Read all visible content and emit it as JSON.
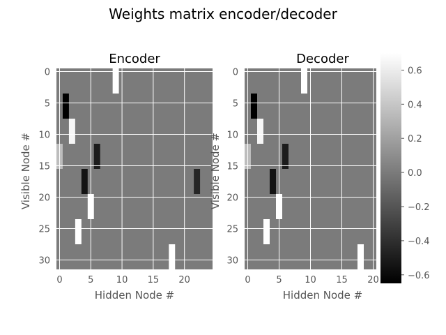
{
  "figure": {
    "suptitle": "Weights matrix encoder/decoder"
  },
  "colors": {
    "panel_bg": "#8c8c8c",
    "grid": "#ffffff",
    "tick_text": "#555555",
    "axis_label_text": "#555555",
    "title_text": "#000000"
  },
  "chart_data": [
    {
      "type": "heatmap",
      "title": "Encoder",
      "xlabel": "Hidden Node #",
      "ylabel": "Visible Node #",
      "x_ticks": [
        0,
        5,
        10,
        15,
        20
      ],
      "y_ticks": [
        0,
        5,
        10,
        15,
        20,
        25,
        30
      ],
      "n_cols": 25,
      "n_rows": 32,
      "background_value": 0.0,
      "grid": true,
      "colormap": "gray",
      "cells": [
        {
          "col": 9,
          "rows": [
            0,
            3
          ],
          "value": 0.7
        },
        {
          "col": 1,
          "rows": [
            4,
            7
          ],
          "value": -0.65
        },
        {
          "col": 2,
          "rows": [
            8,
            11
          ],
          "value": 0.65
        },
        {
          "col": 0,
          "rows": [
            12,
            15
          ],
          "value": 0.35
        },
        {
          "col": 6,
          "rows": [
            12,
            15
          ],
          "value": -0.5
        },
        {
          "col": 4,
          "rows": [
            16,
            19
          ],
          "value": -0.55
        },
        {
          "col": 22,
          "rows": [
            16,
            19
          ],
          "value": -0.45
        },
        {
          "col": 5,
          "rows": [
            20,
            23
          ],
          "value": 0.7
        },
        {
          "col": 3,
          "rows": [
            24,
            27
          ],
          "value": 0.7
        },
        {
          "col": 18,
          "rows": [
            28,
            31
          ],
          "value": 0.7
        }
      ]
    },
    {
      "type": "heatmap",
      "title": "Decoder",
      "xlabel": "Hidden Node #",
      "ylabel": "Visible Node #",
      "x_ticks": [
        0,
        5,
        10,
        15,
        20
      ],
      "y_ticks": [
        0,
        5,
        10,
        15,
        20,
        25,
        30
      ],
      "n_cols": 21,
      "n_rows": 32,
      "background_value": 0.0,
      "grid": true,
      "colormap": "gray",
      "cells": [
        {
          "col": 9,
          "rows": [
            0,
            3
          ],
          "value": 0.7
        },
        {
          "col": 1,
          "rows": [
            4,
            7
          ],
          "value": -0.65
        },
        {
          "col": 2,
          "rows": [
            8,
            11
          ],
          "value": 0.65
        },
        {
          "col": 0,
          "rows": [
            12,
            15
          ],
          "value": 0.35
        },
        {
          "col": 6,
          "rows": [
            12,
            15
          ],
          "value": -0.5
        },
        {
          "col": 4,
          "rows": [
            16,
            19
          ],
          "value": -0.55
        },
        {
          "col": 5,
          "rows": [
            20,
            23
          ],
          "value": 0.7
        },
        {
          "col": 3,
          "rows": [
            24,
            27
          ],
          "value": 0.7
        },
        {
          "col": 18,
          "rows": [
            28,
            31
          ],
          "value": 0.7
        }
      ]
    }
  ],
  "colorbar": {
    "min": -0.65,
    "max": 0.7,
    "ticks": [
      0.6,
      0.4,
      0.2,
      0.0,
      -0.2,
      -0.4,
      -0.6
    ],
    "tick_labels": [
      "0.6",
      "0.4",
      "0.2",
      "0.0",
      "−0.2",
      "−0.4",
      "−0.6"
    ]
  }
}
